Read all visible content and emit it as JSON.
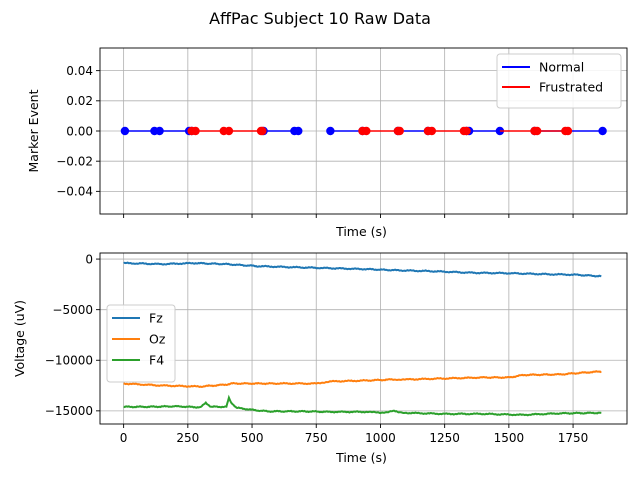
{
  "figure": {
    "title": "AffPac Subject 10 Raw Data"
  },
  "chart_data": [
    {
      "type": "line",
      "title": "",
      "xlabel": "Time (s)",
      "ylabel": "Marker Event",
      "xlim": [
        -92,
        1960
      ],
      "ylim": [
        -0.055,
        0.055
      ],
      "yticks": [
        -0.04,
        -0.02,
        0.0,
        0.02,
        0.04
      ],
      "ytick_labels": [
        "−0.04",
        "−0.02",
        "0.00",
        "0.02",
        "0.04"
      ],
      "xticks": [
        0,
        250,
        500,
        750,
        1000,
        1250,
        1500,
        1750
      ],
      "xtick_labels_visible": false,
      "grid": true,
      "legend": "top-right",
      "series": [
        {
          "name": "Normal",
          "color": "#0000ff",
          "segments": [
            [
              5,
              260
            ],
            [
              545,
              670
            ],
            [
              805,
              930
            ],
            [
              1068,
              1185
            ],
            [
              1335,
              1465
            ],
            [
              1600,
              1865
            ]
          ],
          "markers": [
            5,
            120,
            140,
            255,
            265,
            545,
            665,
            680,
            805,
            930,
            1068,
            1185,
            1335,
            1345,
            1465,
            1600,
            1865
          ]
        },
        {
          "name": "Frustrated",
          "color": "#ff0000",
          "segments": [
            [
              265,
              540
            ],
            [
              930,
              1068
            ],
            [
              1185,
              1335
            ],
            [
              1465,
              1600
            ],
            [
              1600,
              1730
            ]
          ],
          "markers": [
            265,
            280,
            390,
            410,
            535,
            540,
            930,
            945,
            1068,
            1075,
            1185,
            1200,
            1325,
            1335,
            1600,
            1610,
            1720,
            1730
          ]
        }
      ]
    },
    {
      "type": "line",
      "title": "",
      "xlabel": "Time (s)",
      "ylabel": "Voltage (uV)",
      "xlim": [
        -92,
        1960
      ],
      "ylim": [
        -16300,
        600
      ],
      "yticks": [
        0,
        -5000,
        -10000,
        -15000
      ],
      "ytick_labels": [
        "0",
        "−5000",
        "−10000",
        "−15000"
      ],
      "xticks": [
        0,
        250,
        500,
        750,
        1000,
        1250,
        1500,
        1750
      ],
      "xtick_labels": [
        "0",
        "250",
        "500",
        "750",
        "1000",
        "1250",
        "1500",
        "1750"
      ],
      "grid": true,
      "legend": "center-left",
      "series": [
        {
          "name": "Fz",
          "color": "#1f77b4",
          "x": [
            0,
            150,
            280,
            400,
            520,
            650,
            800,
            950,
            1050,
            1200,
            1350,
            1500,
            1650,
            1760,
            1860
          ],
          "values": [
            -400,
            -500,
            -400,
            -500,
            -700,
            -800,
            -900,
            -1000,
            -1100,
            -1200,
            -1350,
            -1400,
            -1500,
            -1550,
            -1700
          ]
        },
        {
          "name": "Oz",
          "color": "#ff7f0e",
          "x": [
            0,
            150,
            300,
            400,
            420,
            500,
            600,
            750,
            800,
            950,
            1050,
            1100,
            1250,
            1400,
            1500,
            1560,
            1700,
            1860
          ],
          "values": [
            -12300,
            -12500,
            -12600,
            -12400,
            -12300,
            -12300,
            -12300,
            -12300,
            -12100,
            -12000,
            -11900,
            -11900,
            -11800,
            -11700,
            -11700,
            -11450,
            -11400,
            -11100
          ]
        },
        {
          "name": "F4",
          "color": "#2ca02c",
          "x": [
            0,
            100,
            200,
            300,
            320,
            340,
            400,
            410,
            420,
            440,
            500,
            560,
            700,
            800,
            950,
            1000,
            1050,
            1070,
            1100,
            1250,
            1400,
            1550,
            1700,
            1860
          ],
          "values": [
            -14600,
            -14600,
            -14550,
            -14650,
            -14200,
            -14600,
            -14600,
            -13700,
            -14200,
            -14700,
            -14900,
            -15050,
            -15050,
            -15100,
            -15100,
            -15200,
            -15000,
            -15150,
            -15200,
            -15300,
            -15300,
            -15400,
            -15250,
            -15200
          ]
        }
      ]
    }
  ]
}
